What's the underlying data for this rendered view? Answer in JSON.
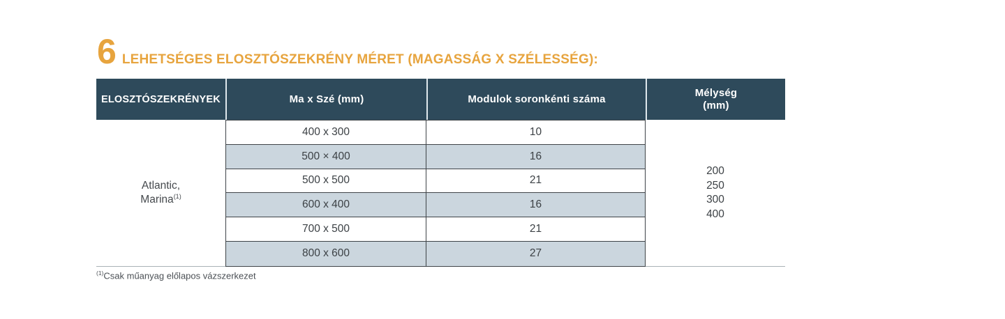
{
  "page": {
    "title_number": "6",
    "title": "LEHETSÉGES ELOSZTÓSZEKRÉNY MÉRET (MAGASSÁG X SZÉLESSÉG):",
    "footnote_sup": "(1)",
    "footnote_text": "Csak műanyag előlapos vázszerkezet"
  },
  "colors": {
    "accent_orange": "#E7A43E",
    "header_bg": "#2E4A5B",
    "stripe_bg": "#CBD6DE"
  },
  "table": {
    "headers": {
      "col1": "ELOSZTÓSZEKRÉNYEK",
      "col2": "Ma x Szé (mm)",
      "col3": "Modulok soronkénti száma",
      "col4_line1": "Mélység",
      "col4_line2": "(mm)"
    },
    "group_label_line1": "Atlantic,",
    "group_label_line2": "Marina",
    "group_label_sup": "(1)",
    "rows": [
      {
        "size": "400 x 300",
        "modules": "10"
      },
      {
        "size": "500 × 400",
        "modules": "16"
      },
      {
        "size": "500 x 500",
        "modules": "21"
      },
      {
        "size": "600 x 400",
        "modules": "16"
      },
      {
        "size": "700 x 500",
        "modules": "21"
      },
      {
        "size": "800 x 600",
        "modules": "27"
      }
    ],
    "depths": [
      "200",
      "250",
      "300",
      "400"
    ]
  }
}
